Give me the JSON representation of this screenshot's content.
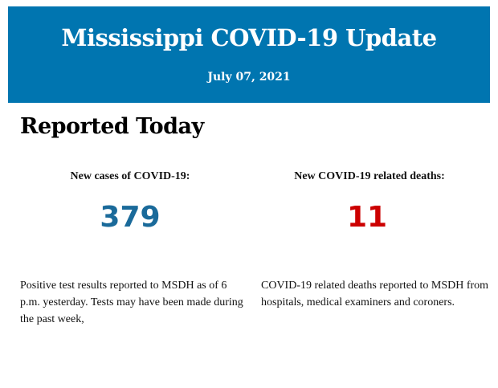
{
  "header": {
    "title": "Mississippi COVID-19 Update",
    "date": "July 07, 2021"
  },
  "section_title": "Reported Today",
  "cases": {
    "label": "New cases of COVID-19:",
    "value": "379",
    "color": "#1a6a9a",
    "description": "Positive test results reported to MSDH as of 6 p.m. yesterday. Tests may have been made during the past week,"
  },
  "deaths": {
    "label": "New COVID-19 related deaths:",
    "value": "11",
    "color": "#cc0000",
    "description": "COVID-19 related deaths reported to MSDH from hospitals, medical examiners and coroners."
  },
  "colors": {
    "banner": "#0075b0"
  }
}
